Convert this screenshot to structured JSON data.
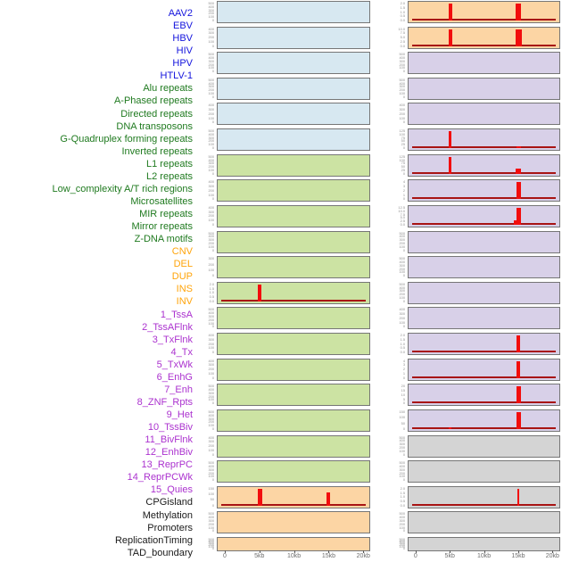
{
  "figure": {
    "kind": "genomic-feature-track-panel",
    "background": "#ffffff",
    "plot_border_color": "#767676",
    "data_line_color": "#f20d0d",
    "baseline_color": "#a81414"
  },
  "categories": {
    "virus": {
      "label_color": "#1414dd",
      "plot_bg": "#d7e8f1"
    },
    "repeat": {
      "label_color": "#1f7a1f",
      "plot_bg": "#cce3a3"
    },
    "sv": {
      "label_color": "#ffa40a",
      "plot_bg": "#fcd5a4"
    },
    "chromatin": {
      "label_color": "#ab32cf",
      "plot_bg": "#d8d0e8"
    },
    "other": {
      "label_color": "#1a1a1a",
      "plot_bg": "#d4d4d4"
    }
  },
  "chart_data": {
    "type": "line",
    "x_unit": "kb",
    "x_range_kb": [
      0,
      21
    ],
    "x_ticks": [
      "0",
      "5kb",
      "10kb",
      "15kb",
      "20kb"
    ],
    "x_tick_values_kb": [
      0,
      5,
      10,
      15,
      20
    ],
    "note": "Each track is a red coverage/density profile over a 0-20kb window; flat tracks show no signal; spikes given as x position (kb) and height relative to axis max.",
    "tracks": [
      {
        "name": "AAV2",
        "category": "virus",
        "column": "left",
        "row": 0,
        "y_ticks": [
          "500",
          "400",
          "300",
          "200",
          "100",
          "0"
        ],
        "baseline": false,
        "spikes": []
      },
      {
        "name": "EBV",
        "category": "virus",
        "column": "left",
        "row": 1,
        "y_ticks": [
          "400",
          "300",
          "200",
          "100",
          "0"
        ],
        "baseline": false,
        "spikes": []
      },
      {
        "name": "HBV",
        "category": "virus",
        "column": "left",
        "row": 2,
        "y_ticks": [
          "500",
          "400",
          "300",
          "200",
          "100",
          "0"
        ],
        "baseline": false,
        "spikes": []
      },
      {
        "name": "HIV",
        "category": "virus",
        "column": "left",
        "row": 3,
        "y_ticks": [
          "500",
          "400",
          "300",
          "200",
          "100",
          "0"
        ],
        "baseline": false,
        "spikes": []
      },
      {
        "name": "HPV",
        "category": "virus",
        "column": "left",
        "row": 4,
        "y_ticks": [
          "400",
          "300",
          "200",
          "100",
          "0"
        ],
        "baseline": false,
        "spikes": []
      },
      {
        "name": "HTLV-1",
        "category": "virus",
        "column": "left",
        "row": 5,
        "y_ticks": [
          "500",
          "400",
          "300",
          "200",
          "100",
          "0"
        ],
        "baseline": false,
        "spikes": []
      },
      {
        "name": "Alu repeats",
        "category": "repeat",
        "column": "left",
        "row": 6,
        "y_ticks": [
          "500",
          "400",
          "300",
          "200",
          "100",
          "0"
        ],
        "baseline": false,
        "spikes": []
      },
      {
        "name": "A-Phased repeats",
        "category": "repeat",
        "column": "left",
        "row": 7,
        "y_ticks": [
          "400",
          "300",
          "200",
          "100",
          "0"
        ],
        "baseline": false,
        "spikes": []
      },
      {
        "name": "Directed repeats",
        "category": "repeat",
        "column": "left",
        "row": 8,
        "y_ticks": [
          "400",
          "300",
          "200",
          "100",
          "0"
        ],
        "baseline": false,
        "spikes": []
      },
      {
        "name": "DNA transposons",
        "category": "repeat",
        "column": "left",
        "row": 9,
        "y_ticks": [
          "500",
          "400",
          "300",
          "200",
          "100",
          "0"
        ],
        "baseline": false,
        "spikes": []
      },
      {
        "name": "G-Quadruplex forming repeats",
        "category": "repeat",
        "column": "left",
        "row": 10,
        "y_ticks": [
          "300",
          "200",
          "100",
          "0"
        ],
        "baseline": false,
        "spikes": []
      },
      {
        "name": "Inverted repeats",
        "category": "repeat",
        "column": "left",
        "row": 11,
        "y_ticks": [
          "2.0",
          "1.5",
          "1.0",
          "0.5",
          "0.0"
        ],
        "baseline": true,
        "spikes": [
          {
            "x_kb": 5,
            "rel_h": 1.0,
            "w": 4
          }
        ]
      },
      {
        "name": "L1 repeats",
        "category": "repeat",
        "column": "left",
        "row": 12,
        "y_ticks": [
          "500",
          "400",
          "300",
          "200",
          "100",
          "0"
        ],
        "baseline": false,
        "spikes": []
      },
      {
        "name": "L2 repeats",
        "category": "repeat",
        "column": "left",
        "row": 13,
        "y_ticks": [
          "400",
          "300",
          "200",
          "100",
          "0"
        ],
        "baseline": false,
        "spikes": []
      },
      {
        "name": "Low_complexity A/T rich regions",
        "category": "repeat",
        "column": "left",
        "row": 14,
        "y_ticks": [
          "400",
          "300",
          "200",
          "100",
          "0"
        ],
        "baseline": false,
        "spikes": []
      },
      {
        "name": "Microsatellites",
        "category": "repeat",
        "column": "left",
        "row": 15,
        "y_ticks": [
          "500",
          "400",
          "300",
          "200",
          "100",
          "0"
        ],
        "baseline": false,
        "spikes": []
      },
      {
        "name": "MIR repeats",
        "category": "repeat",
        "column": "left",
        "row": 16,
        "y_ticks": [
          "500",
          "400",
          "300",
          "200",
          "100",
          "0"
        ],
        "baseline": false,
        "spikes": []
      },
      {
        "name": "Mirror repeats",
        "category": "repeat",
        "column": "left",
        "row": 17,
        "y_ticks": [
          "400",
          "300",
          "200",
          "100",
          "0"
        ],
        "baseline": false,
        "spikes": []
      },
      {
        "name": "Z-DNA motifs",
        "category": "repeat",
        "column": "left",
        "row": 18,
        "y_ticks": [
          "500",
          "400",
          "300",
          "200",
          "100",
          "0"
        ],
        "baseline": false,
        "spikes": []
      },
      {
        "name": "CNV",
        "category": "sv",
        "column": "left",
        "row": 19,
        "y_ticks": [
          "150",
          "100",
          "50",
          "0"
        ],
        "baseline": true,
        "spikes": [
          {
            "x_kb": 5,
            "rel_h": 1.0,
            "w": 5
          },
          {
            "x_kb": 15,
            "rel_h": 0.8,
            "w": 4
          }
        ]
      },
      {
        "name": "DEL",
        "category": "sv",
        "column": "left",
        "row": 20,
        "y_ticks": [
          "500",
          "400",
          "300",
          "200",
          "100",
          "0"
        ],
        "baseline": false,
        "spikes": []
      },
      {
        "name": "DUP",
        "category": "sv",
        "column": "left",
        "row": 21,
        "y_ticks": [
          "500",
          "400",
          "300",
          "200",
          "100",
          "0"
        ],
        "baseline": false,
        "spikes": []
      },
      {
        "name": "INS",
        "category": "sv",
        "column": "right",
        "row": 0,
        "y_ticks": [
          "2.0",
          "1.5",
          "1.0",
          "0.5",
          "0.0"
        ],
        "baseline": true,
        "spikes": [
          {
            "x_kb": 5,
            "rel_h": 1.0,
            "w": 4
          },
          {
            "x_kb": 15,
            "rel_h": 1.0,
            "w": 6
          }
        ]
      },
      {
        "name": "INV",
        "category": "sv",
        "column": "right",
        "row": 1,
        "y_ticks": [
          "10.0",
          "7.5",
          "5.0",
          "2.5",
          "0.0"
        ],
        "baseline": true,
        "spikes": [
          {
            "x_kb": 5,
            "rel_h": 1.0,
            "w": 4
          },
          {
            "x_kb": 15,
            "rel_h": 1.0,
            "w": 7
          }
        ]
      },
      {
        "name": "1_TssA",
        "category": "chromatin",
        "column": "right",
        "row": 2,
        "y_ticks": [
          "500",
          "400",
          "300",
          "200",
          "100",
          "0"
        ],
        "baseline": false,
        "spikes": []
      },
      {
        "name": "2_TssAFlnk",
        "category": "chromatin",
        "column": "right",
        "row": 3,
        "y_ticks": [
          "500",
          "400",
          "300",
          "200",
          "100",
          "0"
        ],
        "baseline": false,
        "spikes": []
      },
      {
        "name": "3_TxFlnk",
        "category": "chromatin",
        "column": "right",
        "row": 4,
        "y_ticks": [
          "400",
          "300",
          "200",
          "100",
          "0"
        ],
        "baseline": false,
        "spikes": []
      },
      {
        "name": "4_Tx",
        "category": "chromatin",
        "column": "right",
        "row": 5,
        "y_ticks": [
          "125",
          "100",
          "75",
          "50",
          "25",
          "0"
        ],
        "baseline": true,
        "spikes": [
          {
            "x_kb": 5,
            "rel_h": 1.0,
            "w": 3
          },
          {
            "x_kb": 15,
            "rel_h": 0.12,
            "w": 5
          }
        ]
      },
      {
        "name": "5_TxWk",
        "category": "chromatin",
        "column": "right",
        "row": 6,
        "y_ticks": [
          "125",
          "100",
          "75",
          "50",
          "25",
          "0"
        ],
        "baseline": true,
        "spikes": [
          {
            "x_kb": 5,
            "rel_h": 1.0,
            "w": 3
          },
          {
            "x_kb": 15,
            "rel_h": 0.28,
            "w": 6
          }
        ]
      },
      {
        "name": "6_EnhG",
        "category": "chromatin",
        "column": "right",
        "row": 7,
        "y_ticks": [
          "4",
          "3",
          "2",
          "1",
          "0"
        ],
        "baseline": true,
        "spikes": [
          {
            "x_kb": 15,
            "rel_h": 1.0,
            "w": 5
          }
        ]
      },
      {
        "name": "7_Enh",
        "category": "chromatin",
        "column": "right",
        "row": 8,
        "y_ticks": [
          "12.5",
          "10.0",
          "7.5",
          "5.0",
          "2.5",
          "0.0"
        ],
        "baseline": true,
        "spikes": [
          {
            "x_kb": 14.5,
            "rel_h": 0.25,
            "w": 3
          },
          {
            "x_kb": 15,
            "rel_h": 1.0,
            "w": 5
          }
        ]
      },
      {
        "name": "8_ZNF_Rpts",
        "category": "chromatin",
        "column": "right",
        "row": 9,
        "y_ticks": [
          "500",
          "400",
          "300",
          "200",
          "100",
          "0"
        ],
        "baseline": false,
        "spikes": []
      },
      {
        "name": "9_Het",
        "category": "chromatin",
        "column": "right",
        "row": 10,
        "y_ticks": [
          "500",
          "400",
          "300",
          "200",
          "100",
          "0"
        ],
        "baseline": false,
        "spikes": []
      },
      {
        "name": "10_TssBiv",
        "category": "chromatin",
        "column": "right",
        "row": 11,
        "y_ticks": [
          "500",
          "400",
          "300",
          "200",
          "100",
          "0"
        ],
        "baseline": false,
        "spikes": []
      },
      {
        "name": "11_BivFlnk",
        "category": "chromatin",
        "column": "right",
        "row": 12,
        "y_ticks": [
          "400",
          "300",
          "200",
          "100",
          "0"
        ],
        "baseline": false,
        "spikes": []
      },
      {
        "name": "12_EnhBiv",
        "category": "chromatin",
        "column": "right",
        "row": 13,
        "y_ticks": [
          "2.0",
          "1.5",
          "1.0",
          "0.5",
          "0.0"
        ],
        "baseline": true,
        "spikes": [
          {
            "x_kb": 15,
            "rel_h": 1.0,
            "w": 4
          }
        ]
      },
      {
        "name": "13_ReprPC",
        "category": "chromatin",
        "column": "right",
        "row": 14,
        "y_ticks": [
          "4",
          "3",
          "2",
          "1",
          "0"
        ],
        "baseline": true,
        "spikes": [
          {
            "x_kb": 15,
            "rel_h": 1.0,
            "w": 4
          }
        ]
      },
      {
        "name": "14_ReprPCWk",
        "category": "chromatin",
        "column": "right",
        "row": 15,
        "y_ticks": [
          "20",
          "15",
          "10",
          "5",
          "0"
        ],
        "baseline": true,
        "spikes": [
          {
            "x_kb": 15,
            "rel_h": 1.0,
            "w": 5
          }
        ]
      },
      {
        "name": "15_Quies",
        "category": "chromatin",
        "column": "right",
        "row": 16,
        "y_ticks": [
          "150",
          "100",
          "50",
          "0"
        ],
        "baseline": true,
        "spikes": [
          {
            "x_kb": 5,
            "rel_h": 0.08,
            "w": 3
          },
          {
            "x_kb": 15,
            "rel_h": 1.0,
            "w": 5
          }
        ]
      },
      {
        "name": "CPGisland",
        "category": "other",
        "column": "right",
        "row": 17,
        "y_ticks": [
          "500",
          "400",
          "300",
          "200",
          "100",
          "0"
        ],
        "baseline": false,
        "spikes": []
      },
      {
        "name": "Methylation",
        "category": "other",
        "column": "right",
        "row": 18,
        "y_ticks": [
          "500",
          "400",
          "300",
          "200",
          "100",
          "0"
        ],
        "baseline": false,
        "spikes": []
      },
      {
        "name": "Promoters",
        "category": "other",
        "column": "right",
        "row": 19,
        "y_ticks": [
          "2.0",
          "1.5",
          "1.0",
          "0.5",
          "0.0"
        ],
        "baseline": true,
        "spikes": [
          {
            "x_kb": 15,
            "rel_h": 1.0,
            "w": 2
          }
        ]
      },
      {
        "name": "ReplicationTiming",
        "category": "other",
        "column": "right",
        "row": 20,
        "y_ticks": [
          "500",
          "400",
          "300",
          "200",
          "100",
          "0"
        ],
        "baseline": false,
        "spikes": []
      },
      {
        "name": "TAD_boundary",
        "category": "other",
        "column": "right",
        "row": 21,
        "y_ticks": [
          "500",
          "400",
          "300",
          "200",
          "100",
          "0"
        ],
        "baseline": false,
        "spikes": []
      }
    ]
  },
  "label_list_order": [
    "AAV2",
    "EBV",
    "HBV",
    "HIV",
    "HPV",
    "HTLV-1",
    "Alu repeats",
    "A-Phased repeats",
    "Directed repeats",
    "DNA transposons",
    "G-Quadruplex forming repeats",
    "Inverted repeats",
    "L1 repeats",
    "L2 repeats",
    "Low_complexity A/T rich regions",
    "Microsatellites",
    "MIR repeats",
    "Mirror repeats",
    "Z-DNA motifs",
    "CNV",
    "DEL",
    "DUP",
    "INS",
    "INV",
    "1_TssA",
    "2_TssAFlnk",
    "3_TxFlnk",
    "4_Tx",
    "5_TxWk",
    "6_EnhG",
    "7_Enh",
    "8_ZNF_Rpts",
    "9_Het",
    "10_TssBiv",
    "11_BivFlnk",
    "12_EnhBiv",
    "13_ReprPC",
    "14_ReprPCWk",
    "15_Quies",
    "CPGisland",
    "Methylation",
    "Promoters",
    "ReplicationTiming",
    "TAD_boundary"
  ]
}
